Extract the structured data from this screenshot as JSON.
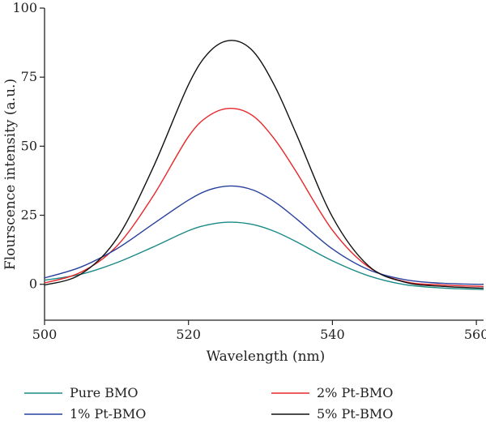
{
  "chart_data": {
    "type": "line",
    "xlabel": "Wavelength (nm)",
    "ylabel": "Flourscence intensity (a.u.)",
    "xlim": [
      500,
      561
    ],
    "ylim": [
      -13,
      100
    ],
    "x_ticks": [
      500,
      520,
      540,
      560
    ],
    "y_ticks": [
      0,
      25,
      50,
      75,
      100
    ],
    "grid": false,
    "legend_position": "bottom",
    "series": [
      {
        "name": "Pure BMO",
        "color": "#1a8a87",
        "x": [
          500,
          505,
          510,
          515,
          520,
          523,
          526,
          529,
          532,
          535,
          540,
          545,
          550,
          555,
          560,
          561
        ],
        "y": [
          1.5,
          3.6,
          7.8,
          13.4,
          19.4,
          21.7,
          22.5,
          21.6,
          19.1,
          15.4,
          8.5,
          3.1,
          -0.1,
          -1.3,
          -1.8,
          -1.9
        ]
      },
      {
        "name": "2% Pt-BMO",
        "color": "#e8262a",
        "x": [
          500,
          505,
          510,
          515,
          520,
          523,
          526,
          529,
          532,
          535,
          540,
          545,
          550,
          555,
          560,
          561
        ],
        "y": [
          0.5,
          4.3,
          13.7,
          31.6,
          53.5,
          61.3,
          63.7,
          60.9,
          52.4,
          40.6,
          19.6,
          6.3,
          1.0,
          -0.2,
          -0.7,
          -0.8
        ]
      },
      {
        "name": "1% Pt-BMO",
        "color": "#27409c",
        "x": [
          500,
          505,
          510,
          515,
          520,
          523,
          526,
          529,
          532,
          535,
          540,
          545,
          550,
          555,
          560,
          561
        ],
        "y": [
          2.3,
          6.2,
          12.8,
          21.7,
          30.5,
          34.3,
          35.6,
          34.1,
          29.8,
          23.7,
          12.8,
          5.3,
          1.7,
          0.4,
          0.0,
          0.0
        ]
      },
      {
        "name": "5% Pt-BMO",
        "color": "#111111",
        "x": [
          500,
          505,
          510,
          515,
          520,
          523,
          526,
          529,
          532,
          535,
          540,
          545,
          550,
          555,
          560,
          561
        ],
        "y": [
          -0.3,
          3.6,
          16.4,
          41.8,
          72.3,
          84.4,
          88.3,
          84.3,
          71.7,
          54.3,
          24.4,
          6.7,
          0.8,
          -0.7,
          -1.3,
          -1.4
        ]
      }
    ]
  }
}
